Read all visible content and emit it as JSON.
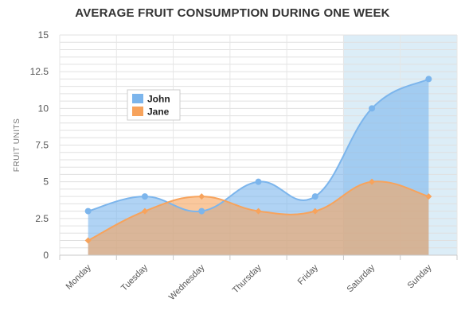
{
  "chart_data": {
    "type": "area",
    "title": "AVERAGE FRUIT CONSUMPTION DURING ONE WEEK",
    "xlabel": "",
    "ylabel": "FRUIT UNITS",
    "categories": [
      "Monday",
      "Tuesday",
      "Wednesday",
      "Thursday",
      "Friday",
      "Saturday",
      "Sunday"
    ],
    "ylim": [
      0,
      15
    ],
    "yticks": [
      "0",
      "2.5",
      "5",
      "7.5",
      "10",
      "12.5",
      "15"
    ],
    "grid": true,
    "legend_position": "left",
    "highlight_band_categories": [
      "Saturday",
      "Sunday"
    ],
    "series": [
      {
        "name": "John",
        "values": [
          3,
          4,
          3,
          5,
          4,
          10,
          12
        ],
        "color": "#7cb5ec"
      },
      {
        "name": "Jane",
        "values": [
          1,
          3,
          4,
          3,
          3,
          5,
          4
        ],
        "color": "#f7a35c"
      }
    ]
  }
}
